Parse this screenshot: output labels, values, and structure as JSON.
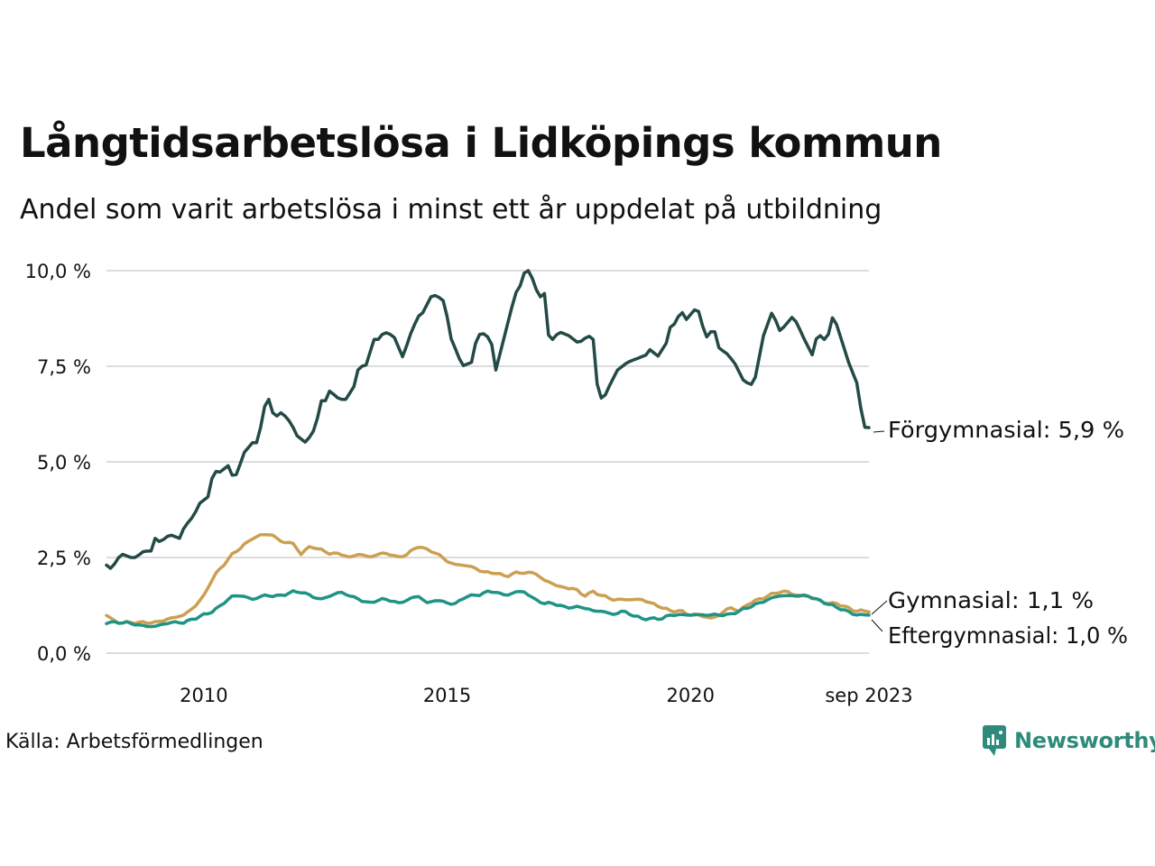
{
  "title": "Långtidsarbetslösa i Lidköpings kommun",
  "subtitle": "Andel som varit arbetslösa i minst ett år uppdelat på utbildning",
  "source": "Källa: Arbetsförmedlingen",
  "brand": "Newsworthy",
  "colors": {
    "forgymnasial": "#234a45",
    "gymnasial": "#cc9f52",
    "eftergymnasial": "#1f9485"
  },
  "chart_data": {
    "type": "line",
    "x_start": 2008.0,
    "x_end": 2023.667,
    "xlim": [
      2008.0,
      2023.667
    ],
    "ylim": [
      0,
      10
    ],
    "y_ticks": [
      {
        "value": 0,
        "label": "0,0 %"
      },
      {
        "value": 2.5,
        "label": "2,5 %"
      },
      {
        "value": 5,
        "label": "5,0 %"
      },
      {
        "value": 7.5,
        "label": "7,5 %"
      },
      {
        "value": 10,
        "label": "10,0 %"
      }
    ],
    "x_ticks": [
      {
        "value": 2010,
        "label": "2010"
      },
      {
        "value": 2015,
        "label": "2015"
      },
      {
        "value": 2020,
        "label": "2020"
      },
      {
        "value": 2023.667,
        "label": "sep 2023"
      }
    ],
    "grid": true,
    "series": [
      {
        "key": "forgymnasial",
        "name": "Förgymnasial",
        "end_label": "Förgymnasial: 5,9 %",
        "keypoints": [
          [
            2008.0,
            2.3
          ],
          [
            2008.1,
            2.2
          ],
          [
            2008.3,
            2.6
          ],
          [
            2008.5,
            2.5
          ],
          [
            2008.6,
            2.5
          ],
          [
            2008.8,
            2.7
          ],
          [
            2008.9,
            2.6
          ],
          [
            2009.0,
            3.0
          ],
          [
            2009.1,
            2.9
          ],
          [
            2009.3,
            3.1
          ],
          [
            2009.5,
            3.0
          ],
          [
            2009.6,
            3.3
          ],
          [
            2009.8,
            3.6
          ],
          [
            2009.9,
            3.9
          ],
          [
            2010.1,
            4.1
          ],
          [
            2010.2,
            4.8
          ],
          [
            2010.3,
            4.7
          ],
          [
            2010.5,
            4.9
          ],
          [
            2010.6,
            4.6
          ],
          [
            2010.7,
            4.7
          ],
          [
            2010.8,
            5.2
          ],
          [
            2011.0,
            5.5
          ],
          [
            2011.1,
            5.5
          ],
          [
            2011.2,
            6.1
          ],
          [
            2011.3,
            6.8
          ],
          [
            2011.4,
            6.3
          ],
          [
            2011.5,
            6.2
          ],
          [
            2011.6,
            6.3
          ],
          [
            2011.8,
            6.0
          ],
          [
            2011.9,
            5.7
          ],
          [
            2012.0,
            5.6
          ],
          [
            2012.1,
            5.5
          ],
          [
            2012.3,
            5.9
          ],
          [
            2012.4,
            6.6
          ],
          [
            2012.5,
            6.6
          ],
          [
            2012.6,
            6.9
          ],
          [
            2012.7,
            6.7
          ],
          [
            2012.9,
            6.6
          ],
          [
            2013.1,
            7.0
          ],
          [
            2013.2,
            7.6
          ],
          [
            2013.3,
            7.4
          ],
          [
            2013.5,
            8.2
          ],
          [
            2013.6,
            8.2
          ],
          [
            2013.7,
            8.4
          ],
          [
            2013.9,
            8.3
          ],
          [
            2014.1,
            7.7
          ],
          [
            2014.2,
            8.2
          ],
          [
            2014.4,
            8.8
          ],
          [
            2014.5,
            8.9
          ],
          [
            2014.7,
            9.4
          ],
          [
            2014.8,
            9.3
          ],
          [
            2014.9,
            9.3
          ],
          [
            2015.0,
            8.8
          ],
          [
            2015.1,
            8.1
          ],
          [
            2015.2,
            7.9
          ],
          [
            2015.3,
            7.5
          ],
          [
            2015.5,
            7.6
          ],
          [
            2015.6,
            8.2
          ],
          [
            2015.7,
            8.4
          ],
          [
            2015.9,
            8.2
          ],
          [
            2016.0,
            7.4
          ],
          [
            2016.1,
            7.9
          ],
          [
            2016.2,
            8.4
          ],
          [
            2016.4,
            9.4
          ],
          [
            2016.5,
            9.6
          ],
          [
            2016.6,
            10.0
          ],
          [
            2016.7,
            10.0
          ],
          [
            2016.8,
            9.6
          ],
          [
            2016.9,
            9.3
          ],
          [
            2017.0,
            9.4
          ],
          [
            2017.1,
            8.1
          ],
          [
            2017.3,
            8.4
          ],
          [
            2017.5,
            8.3
          ],
          [
            2017.7,
            8.1
          ],
          [
            2017.9,
            8.3
          ],
          [
            2018.0,
            8.2
          ],
          [
            2018.1,
            6.8
          ],
          [
            2018.2,
            6.6
          ],
          [
            2018.3,
            6.9
          ],
          [
            2018.5,
            7.4
          ],
          [
            2018.7,
            7.6
          ],
          [
            2018.9,
            7.7
          ],
          [
            2019.1,
            7.8
          ],
          [
            2019.2,
            8.0
          ],
          [
            2019.3,
            7.7
          ],
          [
            2019.5,
            8.1
          ],
          [
            2019.6,
            8.6
          ],
          [
            2019.7,
            8.6
          ],
          [
            2019.8,
            9.0
          ],
          [
            2019.9,
            8.7
          ],
          [
            2020.1,
            9.0
          ],
          [
            2020.2,
            8.9
          ],
          [
            2020.3,
            8.2
          ],
          [
            2020.4,
            8.4
          ],
          [
            2020.5,
            8.4
          ],
          [
            2020.6,
            7.9
          ],
          [
            2020.7,
            7.9
          ],
          [
            2020.9,
            7.6
          ],
          [
            2021.1,
            7.1
          ],
          [
            2021.3,
            7.0
          ],
          [
            2021.5,
            8.3
          ],
          [
            2021.7,
            9.0
          ],
          [
            2021.8,
            8.4
          ],
          [
            2021.9,
            8.5
          ],
          [
            2022.1,
            8.8
          ],
          [
            2022.2,
            8.6
          ],
          [
            2022.3,
            8.3
          ],
          [
            2022.5,
            7.8
          ],
          [
            2022.6,
            8.3
          ],
          [
            2022.7,
            8.3
          ],
          [
            2022.8,
            8.1
          ],
          [
            2022.9,
            8.8
          ],
          [
            2023.0,
            8.6
          ],
          [
            2023.1,
            8.2
          ],
          [
            2023.3,
            7.4
          ],
          [
            2023.4,
            7.2
          ],
          [
            2023.5,
            6.4
          ],
          [
            2023.6,
            5.8
          ],
          [
            2023.67,
            5.9
          ]
        ]
      },
      {
        "key": "gymnasial",
        "name": "Gymnasial",
        "end_label": "Gymnasial: 1,1 %",
        "keypoints": [
          [
            2008.0,
            1.0
          ],
          [
            2008.2,
            0.8
          ],
          [
            2008.4,
            0.8
          ],
          [
            2008.8,
            0.8
          ],
          [
            2009.0,
            0.8
          ],
          [
            2009.3,
            0.9
          ],
          [
            2009.6,
            1.0
          ],
          [
            2009.8,
            1.2
          ],
          [
            2010.0,
            1.5
          ],
          [
            2010.2,
            2.0
          ],
          [
            2010.4,
            2.3
          ],
          [
            2010.6,
            2.6
          ],
          [
            2010.8,
            2.8
          ],
          [
            2011.0,
            3.0
          ],
          [
            2011.2,
            3.1
          ],
          [
            2011.4,
            3.1
          ],
          [
            2011.6,
            2.9
          ],
          [
            2011.8,
            2.9
          ],
          [
            2012.0,
            2.6
          ],
          [
            2012.2,
            2.8
          ],
          [
            2012.4,
            2.7
          ],
          [
            2012.6,
            2.6
          ],
          [
            2012.8,
            2.6
          ],
          [
            2013.0,
            2.5
          ],
          [
            2013.2,
            2.6
          ],
          [
            2013.4,
            2.5
          ],
          [
            2013.6,
            2.6
          ],
          [
            2013.8,
            2.6
          ],
          [
            2014.0,
            2.5
          ],
          [
            2014.2,
            2.6
          ],
          [
            2014.4,
            2.8
          ],
          [
            2014.6,
            2.7
          ],
          [
            2014.8,
            2.6
          ],
          [
            2015.0,
            2.4
          ],
          [
            2015.2,
            2.3
          ],
          [
            2015.4,
            2.3
          ],
          [
            2015.6,
            2.2
          ],
          [
            2015.8,
            2.1
          ],
          [
            2016.0,
            2.1
          ],
          [
            2016.2,
            2.0
          ],
          [
            2016.4,
            2.1
          ],
          [
            2016.6,
            2.1
          ],
          [
            2016.8,
            2.1
          ],
          [
            2017.0,
            1.9
          ],
          [
            2017.2,
            1.8
          ],
          [
            2017.4,
            1.7
          ],
          [
            2017.6,
            1.7
          ],
          [
            2017.8,
            1.5
          ],
          [
            2018.0,
            1.6
          ],
          [
            2018.2,
            1.5
          ],
          [
            2018.4,
            1.4
          ],
          [
            2018.6,
            1.4
          ],
          [
            2018.8,
            1.4
          ],
          [
            2019.0,
            1.4
          ],
          [
            2019.2,
            1.3
          ],
          [
            2019.4,
            1.2
          ],
          [
            2019.6,
            1.1
          ],
          [
            2019.8,
            1.1
          ],
          [
            2020.0,
            1.0
          ],
          [
            2020.2,
            1.0
          ],
          [
            2020.4,
            0.9
          ],
          [
            2020.6,
            1.0
          ],
          [
            2020.8,
            1.2
          ],
          [
            2021.0,
            1.1
          ],
          [
            2021.2,
            1.3
          ],
          [
            2021.4,
            1.4
          ],
          [
            2021.6,
            1.5
          ],
          [
            2021.8,
            1.6
          ],
          [
            2022.0,
            1.6
          ],
          [
            2022.2,
            1.5
          ],
          [
            2022.4,
            1.5
          ],
          [
            2022.6,
            1.4
          ],
          [
            2022.8,
            1.3
          ],
          [
            2023.0,
            1.3
          ],
          [
            2023.2,
            1.2
          ],
          [
            2023.4,
            1.1
          ],
          [
            2023.67,
            1.1
          ]
        ]
      },
      {
        "key": "eftergymnasial",
        "name": "Eftergymnasial",
        "end_label": "Eftergymnasial: 1,0 %",
        "keypoints": [
          [
            2008.0,
            0.8
          ],
          [
            2008.4,
            0.8
          ],
          [
            2008.8,
            0.7
          ],
          [
            2009.0,
            0.7
          ],
          [
            2009.3,
            0.8
          ],
          [
            2009.6,
            0.8
          ],
          [
            2009.8,
            0.9
          ],
          [
            2010.0,
            1.0
          ],
          [
            2010.2,
            1.1
          ],
          [
            2010.4,
            1.3
          ],
          [
            2010.6,
            1.5
          ],
          [
            2010.8,
            1.5
          ],
          [
            2011.0,
            1.4
          ],
          [
            2011.2,
            1.5
          ],
          [
            2011.4,
            1.5
          ],
          [
            2011.6,
            1.5
          ],
          [
            2011.8,
            1.6
          ],
          [
            2012.0,
            1.6
          ],
          [
            2012.2,
            1.5
          ],
          [
            2012.4,
            1.4
          ],
          [
            2012.6,
            1.5
          ],
          [
            2012.8,
            1.6
          ],
          [
            2013.0,
            1.5
          ],
          [
            2013.2,
            1.4
          ],
          [
            2013.4,
            1.3
          ],
          [
            2013.6,
            1.4
          ],
          [
            2013.8,
            1.4
          ],
          [
            2014.0,
            1.3
          ],
          [
            2014.2,
            1.4
          ],
          [
            2014.4,
            1.5
          ],
          [
            2014.6,
            1.3
          ],
          [
            2014.8,
            1.4
          ],
          [
            2015.0,
            1.3
          ],
          [
            2015.2,
            1.3
          ],
          [
            2015.4,
            1.5
          ],
          [
            2015.6,
            1.5
          ],
          [
            2015.8,
            1.6
          ],
          [
            2016.0,
            1.6
          ],
          [
            2016.2,
            1.5
          ],
          [
            2016.4,
            1.6
          ],
          [
            2016.6,
            1.6
          ],
          [
            2016.8,
            1.4
          ],
          [
            2017.0,
            1.3
          ],
          [
            2017.2,
            1.3
          ],
          [
            2017.4,
            1.2
          ],
          [
            2017.6,
            1.2
          ],
          [
            2017.8,
            1.2
          ],
          [
            2018.0,
            1.1
          ],
          [
            2018.2,
            1.1
          ],
          [
            2018.4,
            1.0
          ],
          [
            2018.6,
            1.1
          ],
          [
            2018.8,
            1.0
          ],
          [
            2019.0,
            0.9
          ],
          [
            2019.2,
            0.9
          ],
          [
            2019.4,
            0.9
          ],
          [
            2019.6,
            1.0
          ],
          [
            2019.8,
            1.0
          ],
          [
            2020.0,
            1.0
          ],
          [
            2020.2,
            1.0
          ],
          [
            2020.4,
            1.0
          ],
          [
            2020.6,
            1.0
          ],
          [
            2020.8,
            1.0
          ],
          [
            2021.0,
            1.1
          ],
          [
            2021.2,
            1.2
          ],
          [
            2021.4,
            1.3
          ],
          [
            2021.6,
            1.4
          ],
          [
            2021.8,
            1.5
          ],
          [
            2022.0,
            1.5
          ],
          [
            2022.2,
            1.5
          ],
          [
            2022.4,
            1.5
          ],
          [
            2022.6,
            1.4
          ],
          [
            2022.8,
            1.3
          ],
          [
            2023.0,
            1.2
          ],
          [
            2023.2,
            1.1
          ],
          [
            2023.4,
            1.0
          ],
          [
            2023.67,
            1.0
          ]
        ]
      }
    ]
  }
}
